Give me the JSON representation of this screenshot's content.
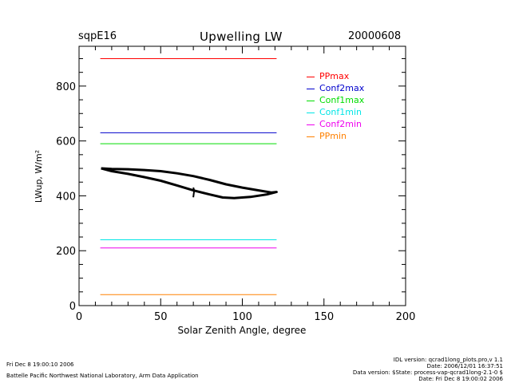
{
  "header": {
    "site": "sqpE16",
    "title": "Upwelling LW",
    "date": "20000608"
  },
  "footer": {
    "left_line1": "Fri Dec  8 19:00:10 2006",
    "left_line2": "Battelle Pacific Northwest National Laboratory, Arm Data Application",
    "right_line1": "IDL version: qcrad1long_plots.pro,v 1.1",
    "right_line2": "Date: 2006/12/01 16:37:51",
    "right_line3": "Data version: $State: process-vap-qcrad1long-2.1-0 $",
    "right_line4": "Date: Fri Dec  8 19:00:02 2006"
  },
  "chart_data": {
    "type": "line",
    "title": "Upwelling LW",
    "xlabel": "Solar Zenith Angle, degree",
    "ylabel": "LWup, W/m²",
    "xlim": [
      0,
      200
    ],
    "ylim": [
      0,
      945
    ],
    "xticks": [
      0,
      50,
      100,
      150,
      200
    ],
    "xtick_labels": [
      "0",
      "50",
      "100",
      "150",
      "200"
    ],
    "x_minor_step": 10,
    "yticks": [
      0,
      200,
      400,
      600,
      800
    ],
    "ytick_labels": [
      "0",
      "200",
      "400",
      "600",
      "800"
    ],
    "y_minor_step": 50,
    "grid": false,
    "legend_position": "top-right",
    "limits": [
      {
        "name": "PPmax",
        "value": 900,
        "color": "#ff0000",
        "x_range": [
          13,
          121
        ]
      },
      {
        "name": "Conf2max",
        "value": 630,
        "color": "#0000cc",
        "x_range": [
          13,
          121
        ]
      },
      {
        "name": "Conf1max",
        "value": 590,
        "color": "#00dd00",
        "x_range": [
          13,
          121
        ]
      },
      {
        "name": "Conf1min",
        "value": 240,
        "color": "#00e5e5",
        "x_range": [
          13,
          121
        ]
      },
      {
        "name": "Conf2min",
        "value": 210,
        "color": "#ee00ee",
        "x_range": [
          13,
          121
        ]
      },
      {
        "name": "PPmin",
        "value": 40,
        "color": "#ff8000",
        "x_range": [
          13,
          121
        ]
      }
    ],
    "series": [
      {
        "name": "LWup",
        "color": "#000000",
        "x": [
          13.5,
          20,
          30,
          40,
          50,
          60,
          70,
          80,
          90,
          100,
          110,
          118,
          121,
          115,
          105,
          95,
          88,
          80,
          70,
          60,
          50,
          40,
          30,
          20,
          13.5
        ],
        "y": [
          500,
          498,
          497,
          494,
          490,
          482,
          472,
          458,
          442,
          430,
          420,
          412,
          414,
          405,
          396,
          392,
          394,
          405,
          420,
          438,
          455,
          468,
          480,
          490,
          500
        ]
      },
      {
        "name": "spike",
        "color": "#000000",
        "x": [
          70,
          70.5,
          70
        ],
        "y": [
          395,
          420,
          430
        ]
      }
    ]
  }
}
